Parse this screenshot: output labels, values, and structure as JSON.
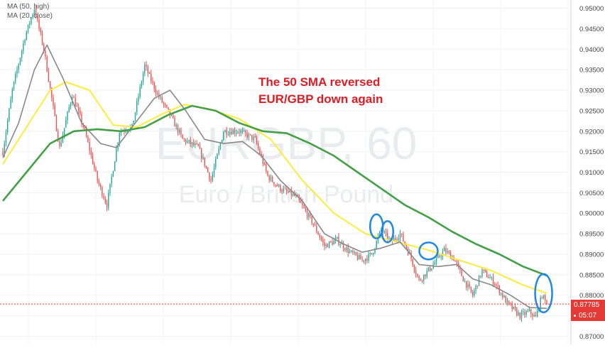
{
  "legend": {
    "ma50": "MA (50, high)",
    "ma20": "MA (20, close)"
  },
  "watermark": {
    "symbol": "EURGBP, 60",
    "description": "Euro / British Pound"
  },
  "annotation": {
    "line1": "The 50 SMA reversed",
    "line2": "EUR/GBP down again"
  },
  "price_tag": {
    "price": "0.87785",
    "countdown": "05:07"
  },
  "colors": {
    "up": "#26a69a",
    "down": "#ef5350",
    "ma50": "#ffeb3b",
    "ma100": "#43a047",
    "ma20": "#888888",
    "circle": "#1e88e5",
    "annotation": "#e01b24"
  },
  "chart_data": {
    "type": "candlestick",
    "symbol": "EURGBP",
    "timeframe": "60",
    "ylim": [
      0.868,
      0.952
    ],
    "y_ticks": [
      "0.95000",
      "0.94500",
      "0.94000",
      "0.93500",
      "0.93000",
      "0.92500",
      "0.92000",
      "0.91500",
      "0.91000",
      "0.90500",
      "0.90000",
      "0.89500",
      "0.89000",
      "0.88500",
      "0.88000",
      "0.87500",
      "0.87000"
    ],
    "last_price": 0.87785,
    "price_path": [
      {
        "t": 0,
        "p": 0.915
      },
      {
        "t": 6,
        "p": 0.93
      },
      {
        "t": 14,
        "p": 0.943
      },
      {
        "t": 20,
        "p": 0.95
      },
      {
        "t": 26,
        "p": 0.94
      },
      {
        "t": 36,
        "p": 0.916
      },
      {
        "t": 44,
        "p": 0.929
      },
      {
        "t": 52,
        "p": 0.92
      },
      {
        "t": 60,
        "p": 0.908
      },
      {
        "t": 66,
        "p": 0.902
      },
      {
        "t": 74,
        "p": 0.92
      },
      {
        "t": 82,
        "p": 0.921
      },
      {
        "t": 90,
        "p": 0.936
      },
      {
        "t": 98,
        "p": 0.929
      },
      {
        "t": 106,
        "p": 0.924
      },
      {
        "t": 114,
        "p": 0.918
      },
      {
        "t": 124,
        "p": 0.916
      },
      {
        "t": 132,
        "p": 0.908
      },
      {
        "t": 140,
        "p": 0.92
      },
      {
        "t": 150,
        "p": 0.92
      },
      {
        "t": 160,
        "p": 0.918
      },
      {
        "t": 168,
        "p": 0.909
      },
      {
        "t": 176,
        "p": 0.906
      },
      {
        "t": 186,
        "p": 0.904
      },
      {
        "t": 196,
        "p": 0.898
      },
      {
        "t": 204,
        "p": 0.892
      },
      {
        "t": 212,
        "p": 0.8935
      },
      {
        "t": 220,
        "p": 0.8905
      },
      {
        "t": 228,
        "p": 0.8885
      },
      {
        "t": 234,
        "p": 0.89
      },
      {
        "t": 240,
        "p": 0.896
      },
      {
        "t": 246,
        "p": 0.893
      },
      {
        "t": 252,
        "p": 0.895
      },
      {
        "t": 258,
        "p": 0.89
      },
      {
        "t": 264,
        "p": 0.8835
      },
      {
        "t": 272,
        "p": 0.887
      },
      {
        "t": 280,
        "p": 0.891
      },
      {
        "t": 286,
        "p": 0.889
      },
      {
        "t": 292,
        "p": 0.884
      },
      {
        "t": 298,
        "p": 0.88
      },
      {
        "t": 304,
        "p": 0.886
      },
      {
        "t": 312,
        "p": 0.883
      },
      {
        "t": 320,
        "p": 0.878
      },
      {
        "t": 328,
        "p": 0.875
      },
      {
        "t": 334,
        "p": 0.876
      },
      {
        "t": 338,
        "p": 0.8745
      },
      {
        "t": 342,
        "p": 0.88
      },
      {
        "t": 345,
        "p": 0.87785
      }
    ],
    "series": [
      {
        "name": "MA (50, high)",
        "points": [
          {
            "t": 0,
            "p": 0.912
          },
          {
            "t": 15,
            "p": 0.921
          },
          {
            "t": 30,
            "p": 0.93
          },
          {
            "t": 40,
            "p": 0.932
          },
          {
            "t": 55,
            "p": 0.93
          },
          {
            "t": 70,
            "p": 0.9215
          },
          {
            "t": 85,
            "p": 0.921
          },
          {
            "t": 100,
            "p": 0.924
          },
          {
            "t": 115,
            "p": 0.9265
          },
          {
            "t": 130,
            "p": 0.9255
          },
          {
            "t": 150,
            "p": 0.923
          },
          {
            "t": 170,
            "p": 0.918
          },
          {
            "t": 190,
            "p": 0.908
          },
          {
            "t": 210,
            "p": 0.9
          },
          {
            "t": 230,
            "p": 0.895
          },
          {
            "t": 250,
            "p": 0.893
          },
          {
            "t": 270,
            "p": 0.891
          },
          {
            "t": 290,
            "p": 0.8885
          },
          {
            "t": 310,
            "p": 0.886
          },
          {
            "t": 330,
            "p": 0.8825
          },
          {
            "t": 345,
            "p": 0.8805
          }
        ]
      },
      {
        "name": "MA (20, close)",
        "points": [
          {
            "t": 0,
            "p": 0.9135
          },
          {
            "t": 10,
            "p": 0.922
          },
          {
            "t": 20,
            "p": 0.935
          },
          {
            "t": 28,
            "p": 0.941
          },
          {
            "t": 38,
            "p": 0.933
          },
          {
            "t": 50,
            "p": 0.922
          },
          {
            "t": 62,
            "p": 0.917
          },
          {
            "t": 72,
            "p": 0.916
          },
          {
            "t": 84,
            "p": 0.922
          },
          {
            "t": 96,
            "p": 0.928
          },
          {
            "t": 106,
            "p": 0.93
          },
          {
            "t": 116,
            "p": 0.925
          },
          {
            "t": 128,
            "p": 0.918
          },
          {
            "t": 140,
            "p": 0.917
          },
          {
            "t": 152,
            "p": 0.9175
          },
          {
            "t": 164,
            "p": 0.914
          },
          {
            "t": 176,
            "p": 0.908
          },
          {
            "t": 190,
            "p": 0.903
          },
          {
            "t": 204,
            "p": 0.895
          },
          {
            "t": 216,
            "p": 0.8925
          },
          {
            "t": 228,
            "p": 0.8905
          },
          {
            "t": 240,
            "p": 0.8915
          },
          {
            "t": 252,
            "p": 0.893
          },
          {
            "t": 264,
            "p": 0.8875
          },
          {
            "t": 276,
            "p": 0.887
          },
          {
            "t": 288,
            "p": 0.8875
          },
          {
            "t": 298,
            "p": 0.884
          },
          {
            "t": 310,
            "p": 0.8825
          },
          {
            "t": 322,
            "p": 0.88
          },
          {
            "t": 334,
            "p": 0.877
          },
          {
            "t": 345,
            "p": 0.8768
          }
        ]
      },
      {
        "points": [
          {
            "t": 0,
            "p": 0.903
          },
          {
            "t": 15,
            "p": 0.91
          },
          {
            "t": 30,
            "p": 0.917
          },
          {
            "t": 45,
            "p": 0.92
          },
          {
            "t": 60,
            "p": 0.9205
          },
          {
            "t": 75,
            "p": 0.92
          },
          {
            "t": 90,
            "p": 0.921
          },
          {
            "t": 105,
            "p": 0.924
          },
          {
            "t": 120,
            "p": 0.9262
          },
          {
            "t": 135,
            "p": 0.925
          },
          {
            "t": 150,
            "p": 0.922
          },
          {
            "t": 165,
            "p": 0.92
          },
          {
            "t": 180,
            "p": 0.9195
          },
          {
            "t": 195,
            "p": 0.917
          },
          {
            "t": 210,
            "p": 0.914
          },
          {
            "t": 225,
            "p": 0.91
          },
          {
            "t": 240,
            "p": 0.906
          },
          {
            "t": 255,
            "p": 0.902
          },
          {
            "t": 270,
            "p": 0.899
          },
          {
            "t": 285,
            "p": 0.8955
          },
          {
            "t": 300,
            "p": 0.8925
          },
          {
            "t": 315,
            "p": 0.89
          },
          {
            "t": 330,
            "p": 0.887
          },
          {
            "t": 345,
            "p": 0.8848
          }
        ]
      }
    ],
    "highlights": [
      {
        "t": 237,
        "p": 0.8968
      },
      {
        "t": 244,
        "p": 0.8955
      },
      {
        "t": 270,
        "p": 0.8908
      },
      {
        "t": 343,
        "p": 0.8805
      }
    ]
  }
}
